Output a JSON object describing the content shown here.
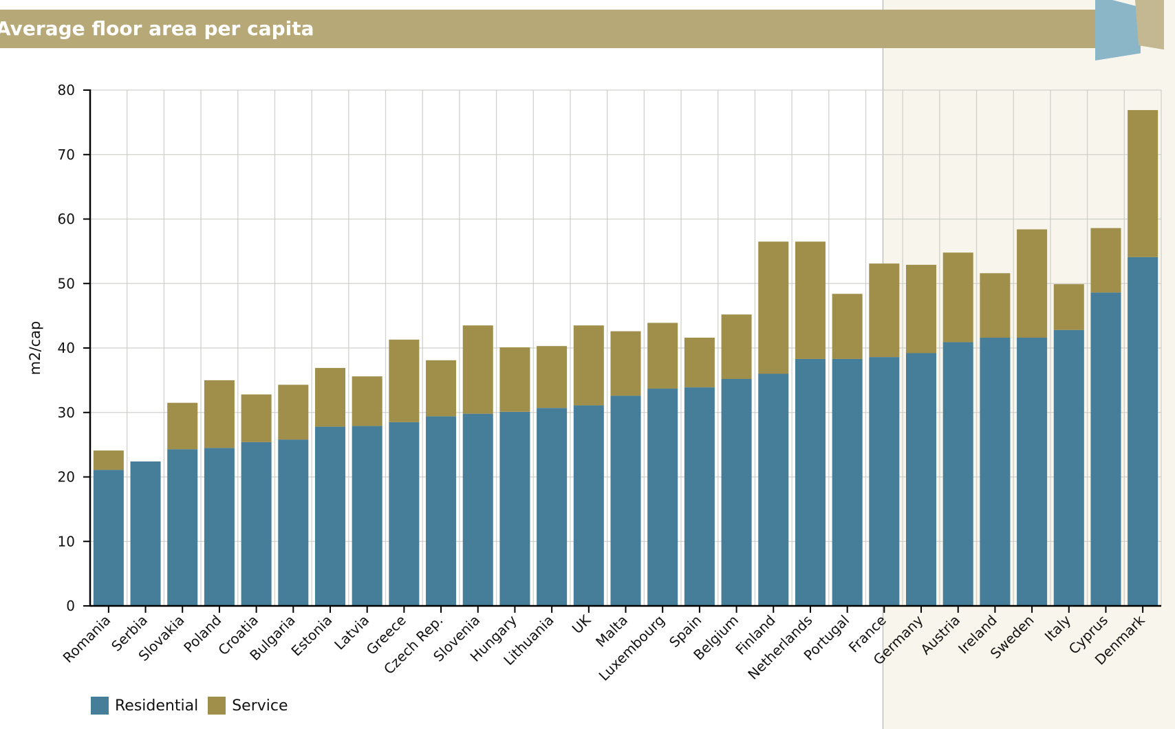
{
  "header": {
    "title": "Average floor area per capita"
  },
  "colors": {
    "residential": "#467d99",
    "service": "#a08f4b",
    "title_bar": "#b6a977",
    "highlight_panel": "#f8f6ec"
  },
  "legend": {
    "items": [
      {
        "label": "Residential",
        "color": "#467d99"
      },
      {
        "label": "Service",
        "color": "#a08f4b"
      }
    ]
  },
  "chart_data": {
    "type": "bar",
    "stacked": true,
    "title": "Average floor area per capita",
    "xlabel": "",
    "ylabel": "m2/cap",
    "ylim": [
      0,
      80
    ],
    "yticks": [
      0,
      10,
      20,
      30,
      40,
      50,
      60,
      70,
      80
    ],
    "grid": true,
    "legend_position": "bottom-left",
    "categories": [
      "Romania",
      "Serbia",
      "Slovakia",
      "Poland",
      "Croatia",
      "Bulgaria",
      "Estonia",
      "Latvia",
      "Greece",
      "Czech Rep.",
      "Slovenia",
      "Hungary",
      "Lithuania",
      "UK",
      "Malta",
      "Luxembourg",
      "Spain",
      "Belgium",
      "Finland",
      "Netherlands",
      "Portugal",
      "France",
      "Germany",
      "Austria",
      "Ireland",
      "Sweden",
      "Italy",
      "Cyprus",
      "Denmark"
    ],
    "series": [
      {
        "name": "Residential",
        "color": "#467d99",
        "values": [
          21.1,
          22.4,
          24.3,
          24.5,
          25.4,
          25.8,
          27.8,
          27.9,
          28.5,
          29.4,
          29.8,
          30.1,
          30.7,
          31.1,
          32.6,
          33.7,
          33.9,
          35.2,
          36.0,
          38.3,
          38.3,
          38.6,
          39.2,
          40.9,
          41.6,
          41.6,
          42.8,
          48.6,
          54.1
        ]
      },
      {
        "name": "Service",
        "color": "#a08f4b",
        "values": [
          3.0,
          0,
          7.2,
          10.5,
          7.4,
          8.5,
          9.1,
          7.7,
          12.8,
          8.7,
          13.7,
          10.0,
          9.6,
          12.4,
          10.0,
          10.2,
          7.7,
          10.0,
          20.5,
          18.2,
          10.1,
          14.5,
          13.7,
          13.9,
          10.0,
          16.8,
          7.1,
          10.0,
          22.8
        ]
      }
    ],
    "highlighted_categories_from": "Germany"
  }
}
